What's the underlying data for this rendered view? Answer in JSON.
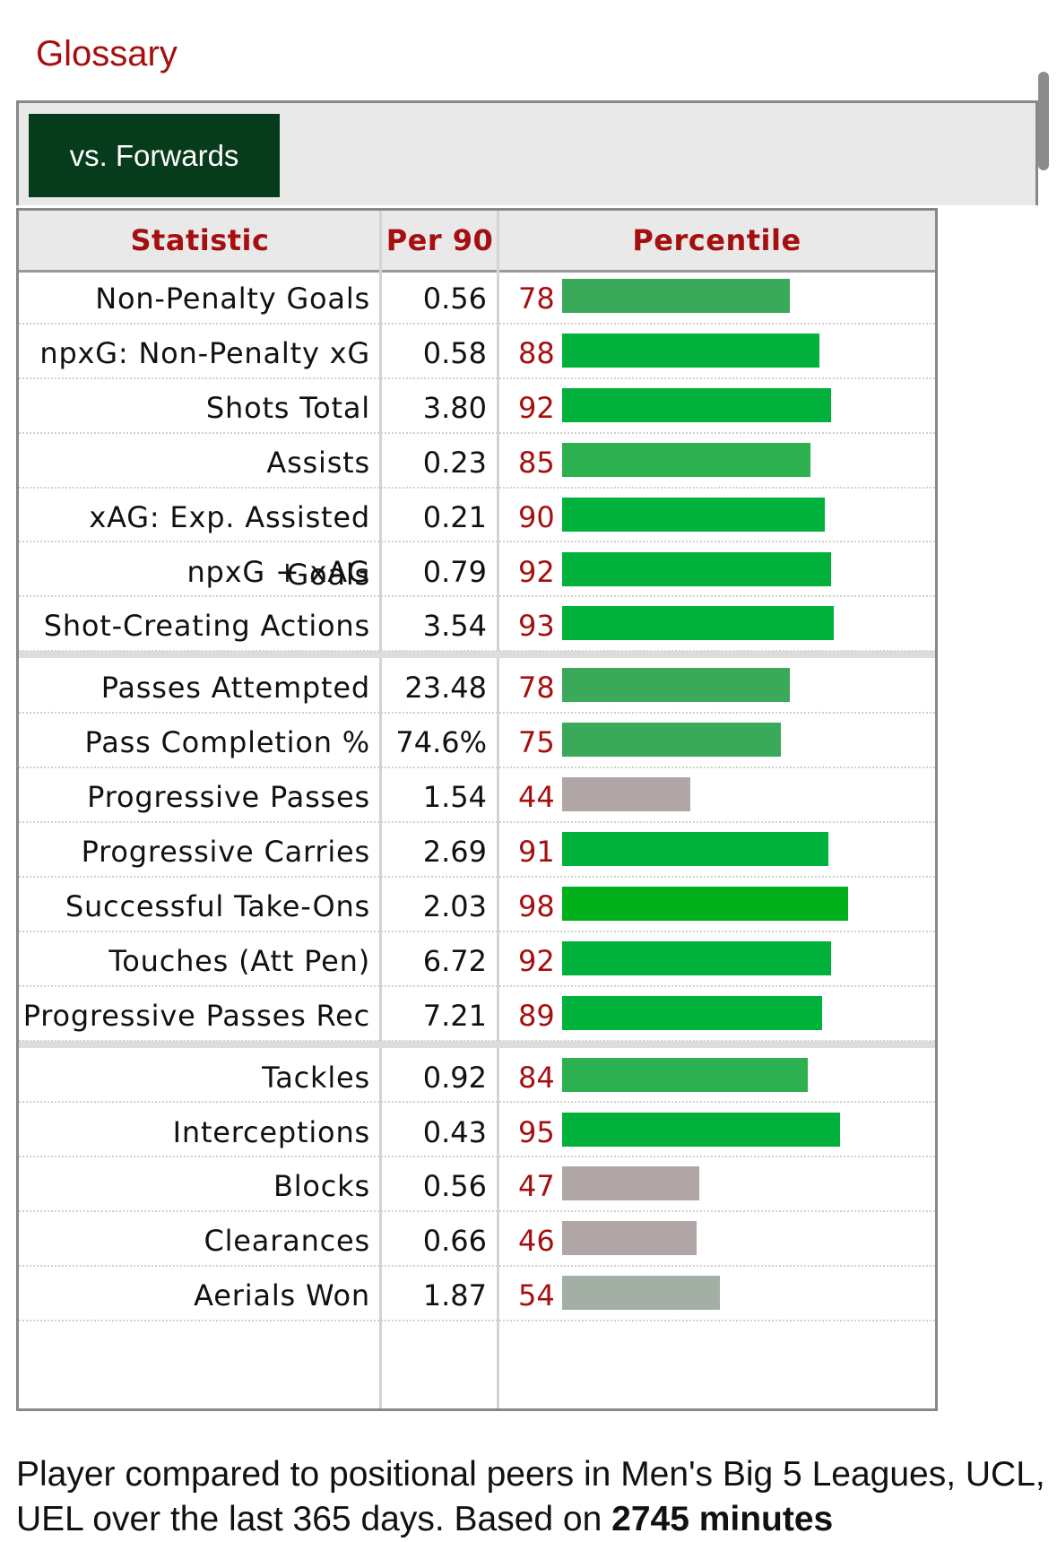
{
  "glossary_label": "Glossary",
  "tab_label": "vs. Forwards",
  "columns": {
    "statistic": "Statistic",
    "per90": "Per 90",
    "percentile": "Percentile"
  },
  "colors": {
    "accent": "#a60f0f",
    "tab_bg": "#063b1c",
    "bar_high": "#00b13b",
    "bar_mid": "#3aaa5a",
    "bar_low": "#b0a6a6",
    "bar_neutral": "#a3aea4"
  },
  "groups": [
    {
      "rows": [
        {
          "stat": "Non-Penalty Goals",
          "per90": "0.56",
          "percentile": 78
        },
        {
          "stat": "npxG: Non-Penalty xG",
          "per90": "0.58",
          "percentile": 88
        },
        {
          "stat": "Shots Total",
          "per90": "3.80",
          "percentile": 92
        },
        {
          "stat": "Assists",
          "per90": "0.23",
          "percentile": 85
        },
        {
          "stat": "xAG: Exp. Assisted Goals",
          "per90": "0.21",
          "percentile": 90
        },
        {
          "stat": "npxG + xAG",
          "per90": "0.79",
          "percentile": 92
        },
        {
          "stat": "Shot-Creating Actions",
          "per90": "3.54",
          "percentile": 93
        }
      ]
    },
    {
      "rows": [
        {
          "stat": "Passes Attempted",
          "per90": "23.48",
          "percentile": 78
        },
        {
          "stat": "Pass Completion %",
          "per90": "74.6%",
          "percentile": 75
        },
        {
          "stat": "Progressive Passes",
          "per90": "1.54",
          "percentile": 44
        },
        {
          "stat": "Progressive Carries",
          "per90": "2.69",
          "percentile": 91
        },
        {
          "stat": "Successful Take-Ons",
          "per90": "2.03",
          "percentile": 98
        },
        {
          "stat": "Touches (Att Pen)",
          "per90": "6.72",
          "percentile": 92
        },
        {
          "stat": "Progressive Passes Rec",
          "per90": "7.21",
          "percentile": 89
        }
      ]
    },
    {
      "rows": [
        {
          "stat": "Tackles",
          "per90": "0.92",
          "percentile": 84
        },
        {
          "stat": "Interceptions",
          "per90": "0.43",
          "percentile": 95
        },
        {
          "stat": "Blocks",
          "per90": "0.56",
          "percentile": 47
        },
        {
          "stat": "Clearances",
          "per90": "0.66",
          "percentile": 46
        },
        {
          "stat": "Aerials Won",
          "per90": "1.87",
          "percentile": 54
        }
      ]
    }
  ],
  "footer": {
    "text_part1": "Player compared to positional peers in Men's Big 5 Leagues, UCL, UEL over the last 365 days. Based on ",
    "text_bold": "2745 minutes"
  }
}
